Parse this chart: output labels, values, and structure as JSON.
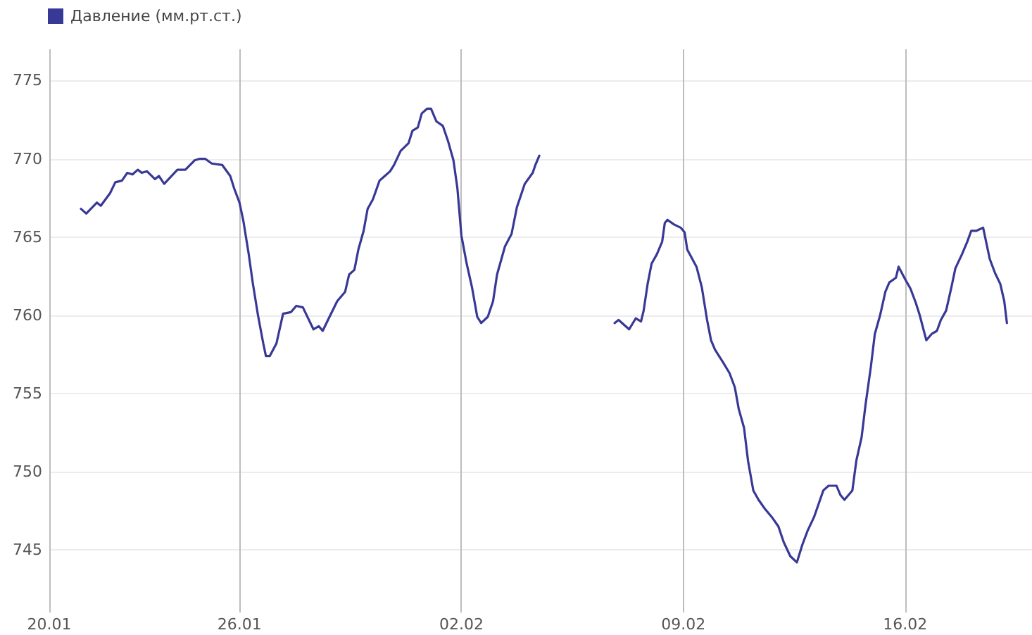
{
  "chart_data": {
    "type": "line",
    "legend": "top left",
    "grid": true,
    "marker": "none",
    "xlim": [
      "--01-20",
      "--02-20"
    ],
    "xticks": [
      {
        "value": "--01-20",
        "label": "20.01"
      },
      {
        "value": "--01-26",
        "label": "26.01"
      },
      {
        "value": "--02-02",
        "label": "02.02"
      },
      {
        "value": "--02-09",
        "label": "09.02"
      },
      {
        "value": "--02-16",
        "label": "16.02"
      }
    ],
    "ylim": [
      741,
      777
    ],
    "yticks": [
      745,
      750,
      755,
      760,
      765,
      770,
      775
    ],
    "x": [
      "--01-21T00:00",
      "--01-21T04:00",
      "--01-21T12:00",
      "--01-21T15:00",
      "--01-21T22:00",
      "--01-22T02:00",
      "--01-22T07:00",
      "--01-22T11:00",
      "--01-22T15:00",
      "--01-22T19:00",
      "--01-22T22:00",
      "--01-23T02:00",
      "--01-23T08:00",
      "--01-23T11:00",
      "--01-23T15:00",
      "--01-24T01:00",
      "--01-24T07:00",
      "--01-24T14:00",
      "--01-24T18:00",
      "--01-24T22:00",
      "--01-25T03:00",
      "--01-25T11:00",
      "--01-25T17:00",
      "--01-25T20:00",
      "--01-26T00:00",
      "--01-26T03:00",
      "--01-26T07:00",
      "--01-26T10:00",
      "--01-26T14:00",
      "--01-26T18:00",
      "--01-26T20:00",
      "--01-26T23:00",
      "--01-27T04:00",
      "--01-27T09:00",
      "--01-27T15:00",
      "--01-27T19:00",
      "--01-28T00:00",
      "--01-28T08:00",
      "--01-28T12:00",
      "--01-28T15:00",
      "--01-28T19:00",
      "--01-29T02:00",
      "--01-29T08:00",
      "--01-29T11:00",
      "--01-29T15:00",
      "--01-29T18:00",
      "--01-29T22:00",
      "--01-30T01:00",
      "--01-30T05:00",
      "--01-30T10:00",
      "--01-30T14:00",
      "--01-30T18:00",
      "--01-30T21:00",
      "--01-31T02:00",
      "--01-31T08:00",
      "--01-31T11:00",
      "--01-31T15:00",
      "--01-31T18:00",
      "--01-31T22:00",
      "--02-01T01:00",
      "--02-01T05:00",
      "--02-01T10:00",
      "--02-01T14:00",
      "--02-01T18:00",
      "--02-01T21:00",
      "--02-02T00:00",
      "--02-02T04:00",
      "--02-02T08:00",
      "--02-02T12:00",
      "--02-02T15:00",
      "--02-02T20:00",
      "--02-03T00:00",
      "--02-03T03:00",
      "--02-03T09:00",
      "--02-03T14:00",
      "--02-03T18:00",
      "--02-04T00:00",
      "--02-04T06:00",
      "--02-04T08:00",
      "--02-04T11:00",
      "--02-05T12:00",
      "--02-06T20:00",
      "--02-06T23:00",
      "--02-07T07:00",
      "--02-07T12:00",
      "--02-07T16:00",
      "--02-07T18:00",
      "--02-07T21:00",
      "--02-08T00:00",
      "--02-08T04:00",
      "--02-08T08:00",
      "--02-08T10:00",
      "--02-08T12:00",
      "--02-08T17:00",
      "--02-08T22:00",
      "--02-09T01:00",
      "--02-09T03:00",
      "--02-09T10:00",
      "--02-09T14:00",
      "--02-09T18:00",
      "--02-09T21:00",
      "--02-10T00:00",
      "--02-10T06:00",
      "--02-10T11:00",
      "--02-10T15:00",
      "--02-10T18:00",
      "--02-10T22:00",
      "--02-11T01:00",
      "--02-11T05:00",
      "--02-11T09:00",
      "--02-11T14:00",
      "--02-11T19:00",
      "--02-12T00:00",
      "--02-12T04:00",
      "--02-12T09:00",
      "--02-12T14:00",
      "--02-12T18:00",
      "--02-12T22:00",
      "--02-13T03:00",
      "--02-13T10:00",
      "--02-13T14:00",
      "--02-13T20:00",
      "--02-13T23:00",
      "--02-14T02:00",
      "--02-14T08:00",
      "--02-14T11:00",
      "--02-14T15:00",
      "--02-14T18:00",
      "--02-14T22:00",
      "--02-15T01:00",
      "--02-15T05:00",
      "--02-15T09:00",
      "--02-15T12:00",
      "--02-15T17:00",
      "--02-15T19:00",
      "--02-16T00:00",
      "--02-16T04:00",
      "--02-16T08:00",
      "--02-16T11:00",
      "--02-16T16:00",
      "--02-16T20:00",
      "--02-17T00:00",
      "--02-17T03:00",
      "--02-17T07:00",
      "--02-17T11:00",
      "--02-17T14:00",
      "--02-17T19:00",
      "--02-17T23:00",
      "--02-18T02:00",
      "--02-18T06:00",
      "--02-18T11:00",
      "--02-18T13:00",
      "--02-18T16:00",
      "--02-18T20:00",
      "--02-19T00:00",
      "--02-19T03:00",
      "--02-19T05:00"
    ],
    "series": [
      {
        "name": "Давление (мм.рт.ст.)",
        "color": "#383896",
        "values": [
          766.8,
          766.5,
          767.2,
          767.0,
          767.8,
          768.5,
          768.6,
          769.1,
          769.0,
          769.3,
          769.1,
          769.2,
          768.7,
          768.9,
          768.4,
          769.3,
          769.3,
          769.9,
          770.0,
          770.0,
          769.7,
          769.6,
          768.9,
          768.1,
          767.2,
          766.0,
          763.9,
          762.1,
          760.0,
          758.2,
          757.4,
          757.4,
          758.2,
          760.1,
          760.2,
          760.6,
          760.5,
          759.1,
          759.3,
          759.0,
          759.7,
          760.9,
          761.5,
          762.6,
          762.9,
          764.2,
          765.4,
          766.8,
          767.4,
          768.6,
          768.9,
          769.2,
          769.6,
          770.5,
          771.0,
          771.8,
          772.0,
          772.9,
          773.2,
          773.2,
          772.4,
          772.1,
          771.1,
          769.9,
          768.1,
          765.1,
          763.3,
          761.8,
          759.9,
          759.5,
          759.9,
          760.9,
          762.6,
          764.4,
          765.2,
          766.9,
          768.4,
          769.1,
          769.6,
          770.2,
          null,
          759.5,
          759.7,
          759.1,
          759.8,
          759.6,
          760.3,
          762.0,
          763.3,
          763.9,
          764.7,
          765.9,
          766.1,
          765.8,
          765.6,
          765.3,
          764.2,
          763.1,
          761.8,
          759.7,
          758.4,
          757.8,
          757.0,
          756.3,
          755.4,
          754.0,
          752.8,
          750.7,
          748.8,
          748.2,
          747.6,
          747.1,
          746.5,
          745.5,
          744.6,
          744.2,
          745.3,
          746.2,
          747.1,
          748.8,
          749.1,
          749.1,
          748.5,
          748.2,
          748.8,
          750.7,
          752.2,
          754.3,
          756.7,
          758.8,
          760.0,
          761.5,
          762.1,
          762.4,
          763.1,
          762.3,
          761.7,
          760.8,
          760.0,
          758.4,
          758.8,
          759.0,
          759.7,
          760.3,
          761.8,
          763.0,
          763.9,
          764.7,
          765.4,
          765.4,
          765.6,
          764.8,
          763.6,
          762.7,
          762.0,
          760.9,
          759.5
        ]
      }
    ]
  }
}
